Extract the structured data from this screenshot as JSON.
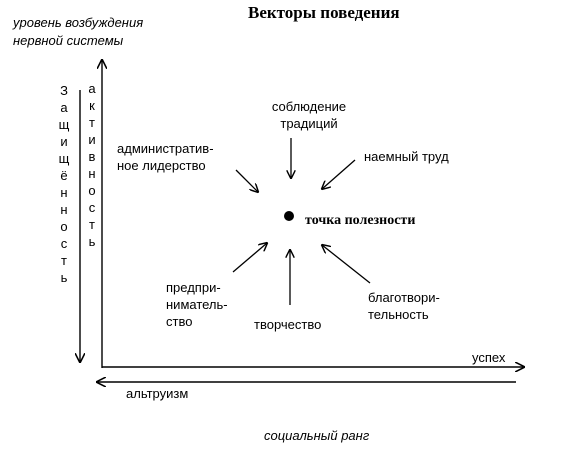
{
  "title": "Векторы поведения",
  "y_axis_label": [
    "уровень возбуждения",
    "нервной системы"
  ],
  "x_axis_label": "социальный ранг",
  "axis_protection": "Защищённость",
  "axis_activity": "активность",
  "axis_success": "успех",
  "axis_altruism": "альтруизм",
  "center_point": "точка полезности",
  "vectors": {
    "traditions": [
      "соблюдение",
      "традиций"
    ],
    "admin": [
      "административ-",
      "ное лидерство"
    ],
    "hired": "наемный труд",
    "entrepreneur": [
      "предпри-",
      "ниматель-",
      "ство"
    ],
    "creativity": "творчество",
    "charity": [
      "благотвори-",
      "тельность"
    ]
  }
}
